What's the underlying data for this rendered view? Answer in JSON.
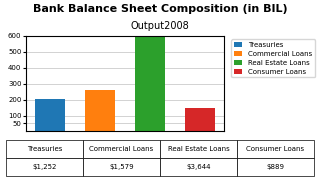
{
  "chart_data": {
    "type": "bar",
    "title": "Bank Balance Sheet Composition (in BIL)",
    "subtitle": "Output2008",
    "categories": [
      "Treasuries",
      "Commercial Loans",
      "Real Estate Loans",
      "Consumer Loans"
    ],
    "values": [
      206.147091,
      259.989023,
      600,
      146.377607
    ],
    "ylim": [
      0,
      600
    ],
    "yticks": [
      50,
      100,
      200,
      300,
      400,
      500,
      600
    ],
    "grid": true,
    "legend": "upper right",
    "tick_labels": "y",
    "table": {
      "columns": [
        "Treasuries",
        "Commercial Loans",
        "Real Estate Loans",
        "Consumer Loans"
      ],
      "cells": [
        "$1,252",
        "$1,579",
        "$3,644",
        "$889"
      ]
    }
  }
}
